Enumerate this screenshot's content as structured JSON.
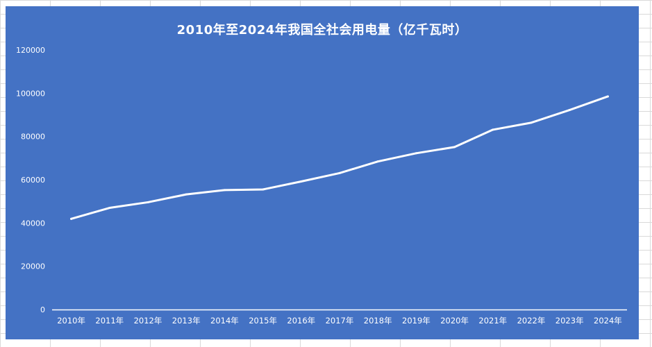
{
  "chart_data": {
    "type": "line",
    "title": "2010年至2024年我国全社会用电量（亿千瓦时）",
    "xlabel": "",
    "ylabel": "",
    "categories": [
      "2010年",
      "2011年",
      "2012年",
      "2013年",
      "2014年",
      "2015年",
      "2016年",
      "2017年",
      "2018年",
      "2019年",
      "2020年",
      "2021年",
      "2022年",
      "2023年",
      "2024年"
    ],
    "series": [
      {
        "values": [
          41923,
          47000,
          49591,
          53223,
          55233,
          55500,
          59198,
          63077,
          68449,
          72255,
          75110,
          83128,
          86372,
          92241,
          98521
        ]
      }
    ],
    "ylim": [
      0,
      120000
    ],
    "yticks": [
      "0",
      "20000",
      "40000",
      "60000",
      "80000",
      "100000",
      "120000"
    ],
    "grid": false,
    "drop_lines": true,
    "legend": "none",
    "colors": {
      "background": "#4472c4",
      "line": "#ffffff",
      "axis": "#ffffff",
      "text": "#ffffff"
    }
  }
}
